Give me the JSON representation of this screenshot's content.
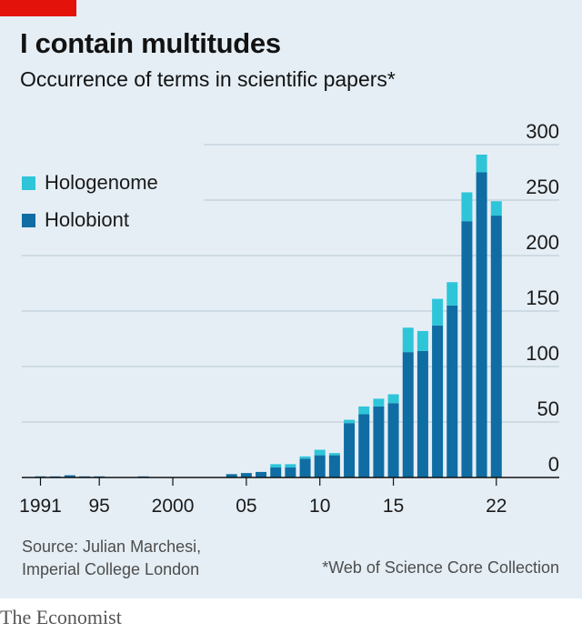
{
  "header": {
    "title": "I contain multitudes",
    "subtitle": "Occurrence of terms in scientific papers*"
  },
  "legend": {
    "hologenome": "Hologenome",
    "holobiont": "Holobiont"
  },
  "colors": {
    "background": "#e5eef5",
    "hologenome": "#2ec5d9",
    "holobiont": "#0f6da3",
    "accent": "#e3120b",
    "gridline": "#b7c6d1",
    "axis": "#121212"
  },
  "chart_data": {
    "type": "bar",
    "stacked": true,
    "orientation": "vertical",
    "x": [
      1991,
      1992,
      1993,
      1994,
      1995,
      1996,
      1997,
      1998,
      1999,
      2000,
      2001,
      2002,
      2003,
      2004,
      2005,
      2006,
      2007,
      2008,
      2009,
      2010,
      2011,
      2012,
      2013,
      2014,
      2015,
      2016,
      2017,
      2018,
      2019,
      2020,
      2021,
      2022
    ],
    "x_tick_values": [
      1991,
      1995,
      2000,
      2005,
      2010,
      2015,
      2022
    ],
    "x_tick_labels": [
      "1991",
      "95",
      "2000",
      "05",
      "10",
      "15",
      "22"
    ],
    "series": [
      {
        "name": "Holobiont",
        "values": [
          1,
          1,
          2,
          1,
          1,
          0,
          0,
          1,
          0,
          0,
          0,
          0,
          0,
          3,
          4,
          5,
          9,
          9,
          17,
          20,
          20,
          49,
          57,
          64,
          67,
          113,
          114,
          137,
          155,
          231,
          275,
          236
        ]
      },
      {
        "name": "Hologenome",
        "values": [
          0,
          0,
          0,
          0,
          0,
          0,
          0,
          0,
          0,
          0,
          0,
          0,
          0,
          0,
          0,
          0,
          3,
          3,
          2,
          5,
          2,
          3,
          7,
          7,
          8,
          22,
          18,
          24,
          21,
          26,
          16,
          13
        ]
      }
    ],
    "ylim": [
      0,
      300
    ],
    "y_ticks": [
      0,
      50,
      100,
      150,
      200,
      250,
      300
    ],
    "y_axis_position": "right",
    "grid": true,
    "legend_position": "top-left"
  },
  "notes": {
    "source_line1": "Source: Julian Marchesi,",
    "source_line2": "Imperial College London",
    "footnote": "*Web of Science Core Collection"
  },
  "brand": "The Economist"
}
